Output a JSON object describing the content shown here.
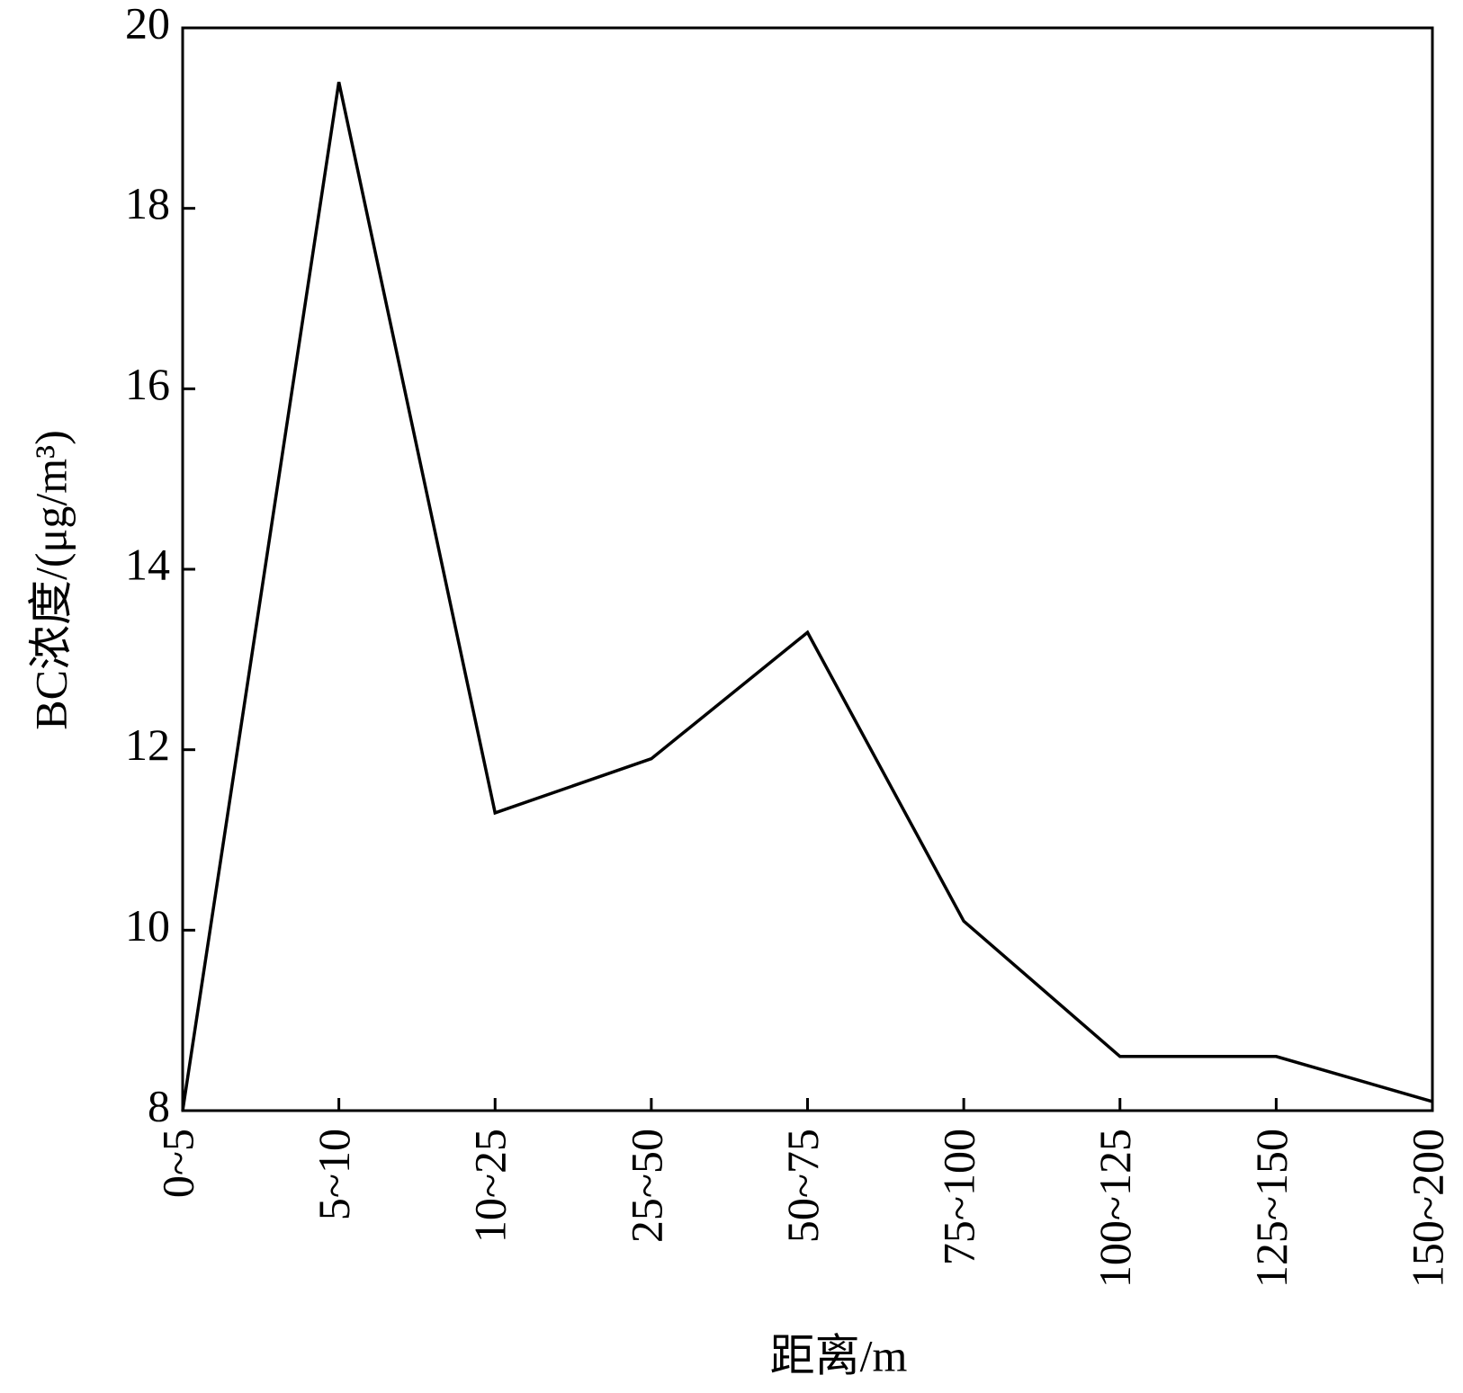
{
  "chart_data": {
    "type": "line",
    "x_label": "距离/m",
    "y_label": "BC浓度/(μg/m³)",
    "categories": [
      "0~5",
      "5~10",
      "10~25",
      "25~50",
      "50~75",
      "75~100",
      "100~125",
      "125~150",
      "150~200"
    ],
    "values": [
      8.0,
      19.4,
      11.3,
      11.9,
      13.3,
      10.1,
      8.6,
      8.6,
      8.1
    ],
    "color": "#000000",
    "ylim": [
      8,
      20
    ],
    "yticks": [
      8,
      10,
      12,
      14,
      16,
      18,
      20
    ],
    "grid": false
  }
}
